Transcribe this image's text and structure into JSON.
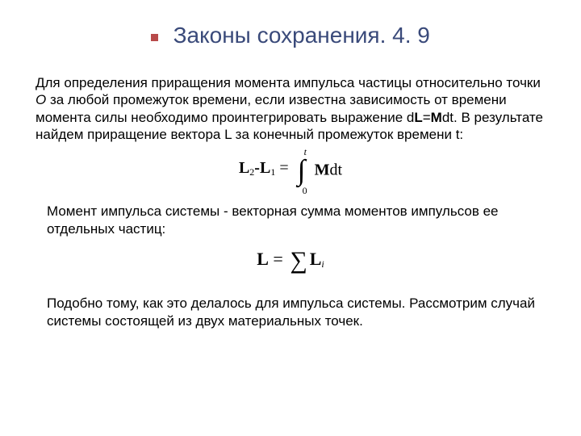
{
  "title": "Законы сохранения. 4. 9",
  "p1_a": "Для определения приращения момента импульса частицы относительно точки ",
  "p1_O": "О",
  "p1_b": " за любой промежуток времени, если известна зависимость от времени момента силы необходимо проинтегрировать  выражение d",
  "p1_L": "L",
  "p1_c": "=",
  "p1_M": "M",
  "p1_d": "dt. В результате найдем приращение вектора L за конечный промежуток времени t:",
  "f1_L2": "L",
  "f1_s2": "2",
  "f1_dash": "-",
  "f1_L1": "L",
  "f1_s1": "1",
  "f1_eq": " = ",
  "f1_top": "t",
  "f1_bot": "0",
  "f1_M": "M",
  "f1_dt": "dt",
  "p2": "Момент импульса системы - векторная сумма моментов импульсов ее отдельных частиц:",
  "f2_L": "L",
  "f2_eq": " = ",
  "f2_Li": "L",
  "f2_i": "i",
  "p3": "Подобно тому, как это делалось для импульса системы. Рассмотрим случай системы состоящей из двух материальных точек.",
  "colors": {
    "title": "#3a4a7a",
    "bullet": "#b84a4a",
    "text": "#000000",
    "background": "#ffffff"
  },
  "typography": {
    "title_fontsize": 28,
    "body_fontsize": 17,
    "formula_font": "Times New Roman"
  }
}
